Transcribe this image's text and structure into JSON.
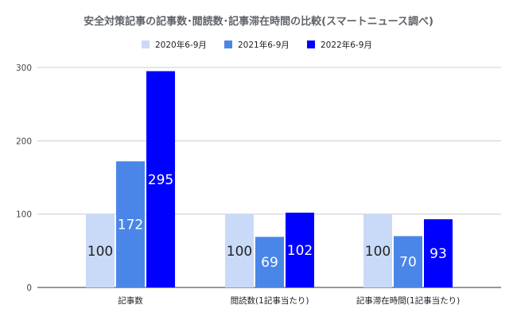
{
  "chart_data": {
    "type": "bar",
    "title": "安全対策記事の記事数･閲読数･記事滞在時間の比較(スマートニュース調べ)",
    "xlabel": "",
    "ylabel": "",
    "categories": [
      "記事数",
      "閲読数(1記事当たり)",
      "記事滞在時間(1記事当たり)"
    ],
    "series": [
      {
        "name": "2020年6-9月",
        "values": [
          100,
          100,
          100
        ],
        "color": "#c9daf8"
      },
      {
        "name": "2021年6-9月",
        "values": [
          172,
          69,
          70
        ],
        "color": "#4a86e8"
      },
      {
        "name": "2022年6-9月",
        "values": [
          295,
          102,
          93
        ],
        "color": "#0000ff"
      }
    ],
    "ylim": [
      0,
      300
    ],
    "yticks": [
      0,
      100,
      200,
      300
    ],
    "grid": true,
    "legend_position": "top-center"
  }
}
